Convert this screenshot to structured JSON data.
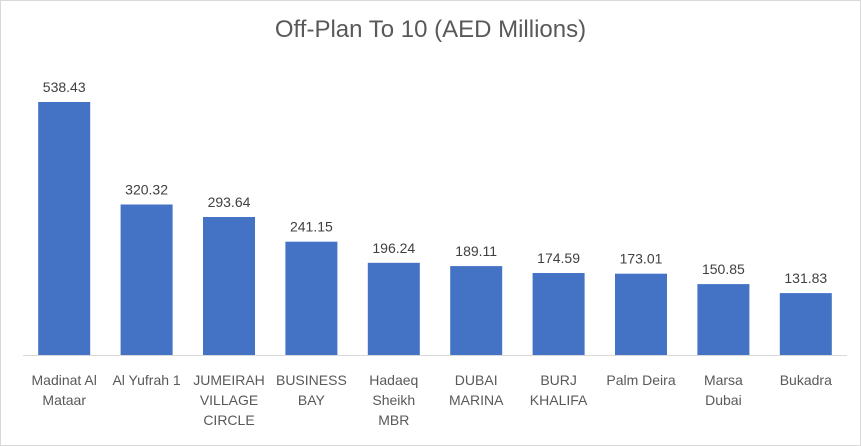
{
  "chart_data": {
    "type": "bar",
    "title": "Off-Plan To 10 (AED Millions)",
    "categories": [
      [
        "Madinat Al",
        "Mataar"
      ],
      [
        "Al Yufrah 1"
      ],
      [
        "JUMEIRAH",
        "VILLAGE",
        "CIRCLE"
      ],
      [
        "BUSINESS",
        "BAY"
      ],
      [
        "Hadaeq",
        "Sheikh",
        "MBR"
      ],
      [
        "DUBAI",
        "MARINA"
      ],
      [
        "BURJ",
        "KHALIFA"
      ],
      [
        "Palm Deira"
      ],
      [
        "Marsa",
        "Dubai"
      ],
      [
        "Bukadra"
      ]
    ],
    "values": [
      538.43,
      320.32,
      293.64,
      241.15,
      196.24,
      189.11,
      174.59,
      173.01,
      150.85,
      131.83
    ],
    "value_labels": [
      "538.43",
      "320.32",
      "293.64",
      "241.15",
      "196.24",
      "189.11",
      "174.59",
      "173.01",
      "150.85",
      "131.83"
    ],
    "ylim": [
      0,
      538.43
    ],
    "grid": false,
    "legend": "none",
    "bar_color": "#4472c4"
  }
}
